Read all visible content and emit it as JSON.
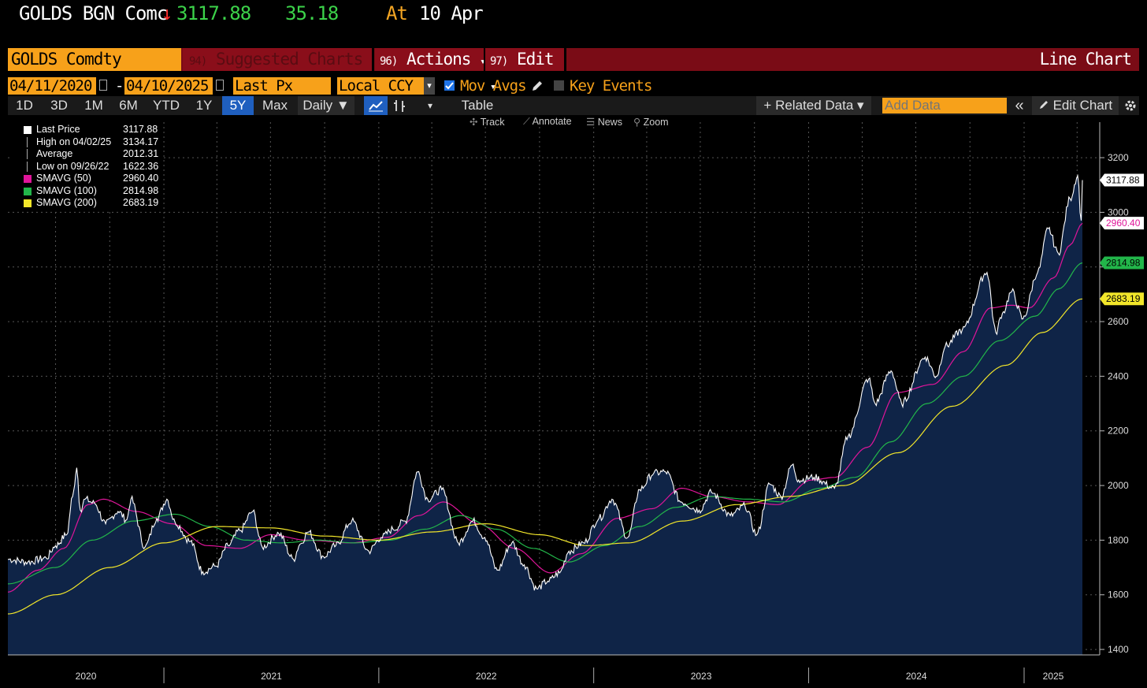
{
  "header": {
    "ticker": "GOLDS BGN Comc",
    "arrow": "↓",
    "price": "3117.88",
    "change": "35.18",
    "at_label": "At",
    "date": "10 Apr"
  },
  "menubar": {
    "security": "GOLDS Comdty",
    "suggested_num": "94)",
    "suggested": "Suggested Charts",
    "actions_num": "96)",
    "actions": "Actions",
    "edit_num": "97)",
    "edit": "Edit",
    "chart_type": "Line Chart",
    "caret": "▾"
  },
  "daterow": {
    "start": "04/11/2020",
    "dash": "-",
    "end": "04/10/2025",
    "field": "Last Px",
    "currency": "Local CCY",
    "mov_avgs": "Mov Avgs",
    "key_events": "Key Events"
  },
  "toolbar": {
    "periods": [
      "1D",
      "3D",
      "1M",
      "6M",
      "YTD",
      "1Y",
      "5Y",
      "Max"
    ],
    "active_period": "5Y",
    "frequency": "Daily ▼",
    "table": "Table",
    "related": "+ Related Data ▾",
    "add_data_placeholder": "Add Data",
    "collapse": "«",
    "edit_chart": "Edit Chart"
  },
  "subtools": {
    "track": "Track",
    "annotate": "Annotate",
    "news": "News",
    "zoom": "Zoom"
  },
  "legend": [
    {
      "name": "Last Price",
      "value": "3117.88",
      "color": "#ffffff"
    },
    {
      "name": "High on 04/02/25",
      "value": "3134.17",
      "color": "#ffffff"
    },
    {
      "name": "Average",
      "value": "2012.31",
      "color": "#ffffff"
    },
    {
      "name": "Low on 09/26/22",
      "value": "1622.36",
      "color": "#ffffff"
    },
    {
      "name": "SMAVG (50)",
      "value": "2960.40",
      "color": "#e0159a"
    },
    {
      "name": "SMAVG (100)",
      "value": "2814.98",
      "color": "#22b64a"
    },
    {
      "name": "SMAVG (200)",
      "value": "2683.19",
      "color": "#f2e62a"
    }
  ],
  "colors": {
    "accent": "#f7a11a",
    "menubar": "#7a0c16",
    "area_fill": "#0f2447",
    "price_line": "#ffffff",
    "sma50": "#e0159a",
    "sma100": "#22b64a",
    "sma200": "#f2e62a"
  },
  "chart_data": {
    "type": "line",
    "x_ticks": [
      "2020",
      "2021",
      "2022",
      "2023",
      "2024",
      "2025"
    ],
    "y_ticks": [
      1400,
      1600,
      1800,
      2000,
      2200,
      2400,
      2600,
      2800,
      3000,
      3200
    ],
    "y_tick_labels": [
      "1400",
      "1600",
      "1800",
      "2000",
      "2200",
      "2400",
      "2600",
      "",
      "3000",
      "3200"
    ],
    "ylim": [
      1380,
      3330
    ],
    "x_range": [
      "2020-04-11",
      "2025-04-10"
    ],
    "grid": true,
    "legend_position": "top-left",
    "series": [
      {
        "name": "Last Price",
        "points": [
          [
            "2020-04-11",
            1730
          ],
          [
            "2020-05-15",
            1720
          ],
          [
            "2020-06-15",
            1735
          ],
          [
            "2020-07-01",
            1780
          ],
          [
            "2020-07-20",
            1820
          ],
          [
            "2020-07-30",
            1960
          ],
          [
            "2020-08-06",
            2065
          ],
          [
            "2020-08-12",
            1910
          ],
          [
            "2020-08-20",
            1950
          ],
          [
            "2020-09-05",
            1935
          ],
          [
            "2020-09-24",
            1860
          ],
          [
            "2020-10-15",
            1905
          ],
          [
            "2020-10-30",
            1875
          ],
          [
            "2020-11-06",
            1950
          ],
          [
            "2020-11-30",
            1775
          ],
          [
            "2020-12-20",
            1880
          ],
          [
            "2021-01-06",
            1950
          ],
          [
            "2021-01-20",
            1865
          ],
          [
            "2021-02-15",
            1795
          ],
          [
            "2021-03-08",
            1685
          ],
          [
            "2021-03-30",
            1705
          ],
          [
            "2021-04-20",
            1780
          ],
          [
            "2021-05-10",
            1835
          ],
          [
            "2021-06-01",
            1905
          ],
          [
            "2021-06-17",
            1775
          ],
          [
            "2021-07-15",
            1825
          ],
          [
            "2021-08-09",
            1730
          ],
          [
            "2021-08-20",
            1785
          ],
          [
            "2021-09-03",
            1830
          ],
          [
            "2021-09-29",
            1740
          ],
          [
            "2021-10-20",
            1780
          ],
          [
            "2021-11-16",
            1870
          ],
          [
            "2021-12-15",
            1760
          ],
          [
            "2022-01-05",
            1810
          ],
          [
            "2022-01-25",
            1840
          ],
          [
            "2022-02-15",
            1870
          ],
          [
            "2022-03-08",
            2050
          ],
          [
            "2022-03-25",
            1950
          ],
          [
            "2022-04-18",
            1985
          ],
          [
            "2022-05-16",
            1790
          ],
          [
            "2022-06-10",
            1870
          ],
          [
            "2022-06-30",
            1810
          ],
          [
            "2022-07-21",
            1690
          ],
          [
            "2022-08-15",
            1790
          ],
          [
            "2022-09-05",
            1710
          ],
          [
            "2022-09-26",
            1622
          ],
          [
            "2022-10-15",
            1650
          ],
          [
            "2022-11-04",
            1680
          ],
          [
            "2022-11-20",
            1760
          ],
          [
            "2022-12-15",
            1790
          ],
          [
            "2023-01-10",
            1880
          ],
          [
            "2023-02-01",
            1950
          ],
          [
            "2023-02-28",
            1810
          ],
          [
            "2023-03-20",
            1985
          ],
          [
            "2023-04-13",
            2045
          ],
          [
            "2023-05-03",
            2050
          ],
          [
            "2023-05-30",
            1940
          ],
          [
            "2023-06-29",
            1910
          ],
          [
            "2023-07-20",
            1975
          ],
          [
            "2023-08-21",
            1890
          ],
          [
            "2023-09-15",
            1925
          ],
          [
            "2023-10-05",
            1820
          ],
          [
            "2023-10-27",
            2005
          ],
          [
            "2023-11-15",
            1960
          ],
          [
            "2023-12-04",
            2075
          ],
          [
            "2023-12-15",
            2020
          ],
          [
            "2024-01-10",
            2030
          ],
          [
            "2024-02-14",
            1990
          ],
          [
            "2024-03-08",
            2180
          ],
          [
            "2024-04-12",
            2390
          ],
          [
            "2024-04-23",
            2300
          ],
          [
            "2024-05-20",
            2420
          ],
          [
            "2024-06-07",
            2300
          ],
          [
            "2024-07-17",
            2470
          ],
          [
            "2024-08-05",
            2400
          ],
          [
            "2024-08-20",
            2510
          ],
          [
            "2024-09-18",
            2570
          ],
          [
            "2024-10-30",
            2780
          ],
          [
            "2024-11-14",
            2560
          ],
          [
            "2024-11-25",
            2630
          ],
          [
            "2024-12-11",
            2710
          ],
          [
            "2024-12-30",
            2610
          ],
          [
            "2025-01-24",
            2780
          ],
          [
            "2025-02-11",
            2940
          ],
          [
            "2025-02-28",
            2850
          ],
          [
            "2025-03-20",
            3050
          ],
          [
            "2025-04-02",
            3134
          ],
          [
            "2025-04-08",
            2970
          ],
          [
            "2025-04-10",
            3118
          ]
        ]
      },
      {
        "name": "SMAVG (50)",
        "points": [
          [
            "2020-04-11",
            1610
          ],
          [
            "2020-06-01",
            1690
          ],
          [
            "2020-07-15",
            1770
          ],
          [
            "2020-08-25",
            1930
          ],
          [
            "2020-09-20",
            1950
          ],
          [
            "2020-11-15",
            1905
          ],
          [
            "2021-01-15",
            1860
          ],
          [
            "2021-03-15",
            1780
          ],
          [
            "2021-05-10",
            1770
          ],
          [
            "2021-07-01",
            1820
          ],
          [
            "2021-09-01",
            1800
          ],
          [
            "2021-11-15",
            1790
          ],
          [
            "2022-01-15",
            1810
          ],
          [
            "2022-03-10",
            1890
          ],
          [
            "2022-04-20",
            1940
          ],
          [
            "2022-06-20",
            1860
          ],
          [
            "2022-08-20",
            1770
          ],
          [
            "2022-10-20",
            1680
          ],
          [
            "2022-12-10",
            1750
          ],
          [
            "2023-02-10",
            1880
          ],
          [
            "2023-04-10",
            1915
          ],
          [
            "2023-05-30",
            1990
          ],
          [
            "2023-07-20",
            1960
          ],
          [
            "2023-09-20",
            1940
          ],
          [
            "2023-11-10",
            1930
          ],
          [
            "2024-01-05",
            2020
          ],
          [
            "2024-02-15",
            2030
          ],
          [
            "2024-04-10",
            2140
          ],
          [
            "2024-05-30",
            2340
          ],
          [
            "2024-07-30",
            2370
          ],
          [
            "2024-09-20",
            2490
          ],
          [
            "2024-11-05",
            2650
          ],
          [
            "2024-12-10",
            2660
          ],
          [
            "2025-01-10",
            2650
          ],
          [
            "2025-02-20",
            2760
          ],
          [
            "2025-03-20",
            2880
          ],
          [
            "2025-04-10",
            2960
          ]
        ]
      },
      {
        "name": "SMAVG (100)",
        "points": [
          [
            "2020-04-11",
            1640
          ],
          [
            "2020-07-01",
            1700
          ],
          [
            "2020-09-01",
            1800
          ],
          [
            "2020-11-10",
            1870
          ],
          [
            "2021-01-20",
            1895
          ],
          [
            "2021-03-20",
            1850
          ],
          [
            "2021-05-20",
            1800
          ],
          [
            "2021-07-20",
            1790
          ],
          [
            "2021-09-20",
            1800
          ],
          [
            "2021-11-20",
            1790
          ],
          [
            "2022-01-20",
            1800
          ],
          [
            "2022-03-20",
            1840
          ],
          [
            "2022-05-20",
            1890
          ],
          [
            "2022-07-20",
            1840
          ],
          [
            "2022-09-20",
            1770
          ],
          [
            "2022-11-20",
            1720
          ],
          [
            "2023-01-20",
            1780
          ],
          [
            "2023-03-20",
            1850
          ],
          [
            "2023-05-20",
            1920
          ],
          [
            "2023-07-20",
            1960
          ],
          [
            "2023-09-20",
            1950
          ],
          [
            "2023-11-20",
            1940
          ],
          [
            "2024-01-20",
            1990
          ],
          [
            "2024-03-20",
            2030
          ],
          [
            "2024-05-20",
            2160
          ],
          [
            "2024-07-20",
            2300
          ],
          [
            "2024-09-20",
            2400
          ],
          [
            "2024-11-20",
            2530
          ],
          [
            "2025-01-20",
            2620
          ],
          [
            "2025-03-01",
            2720
          ],
          [
            "2025-04-10",
            2815
          ]
        ]
      },
      {
        "name": "SMAVG (200)",
        "points": [
          [
            "2020-04-11",
            1530
          ],
          [
            "2020-07-01",
            1600
          ],
          [
            "2020-10-01",
            1700
          ],
          [
            "2021-01-01",
            1790
          ],
          [
            "2021-04-01",
            1850
          ],
          [
            "2021-07-01",
            1845
          ],
          [
            "2021-10-01",
            1815
          ],
          [
            "2022-01-01",
            1800
          ],
          [
            "2022-04-01",
            1830
          ],
          [
            "2022-07-01",
            1860
          ],
          [
            "2022-10-01",
            1820
          ],
          [
            "2022-12-20",
            1780
          ],
          [
            "2023-03-01",
            1790
          ],
          [
            "2023-06-01",
            1870
          ],
          [
            "2023-09-01",
            1930
          ],
          [
            "2023-12-01",
            1960
          ],
          [
            "2024-03-01",
            2000
          ],
          [
            "2024-06-01",
            2120
          ],
          [
            "2024-09-01",
            2290
          ],
          [
            "2024-12-01",
            2440
          ],
          [
            "2025-02-01",
            2560
          ],
          [
            "2025-04-10",
            2683
          ]
        ]
      }
    ]
  }
}
